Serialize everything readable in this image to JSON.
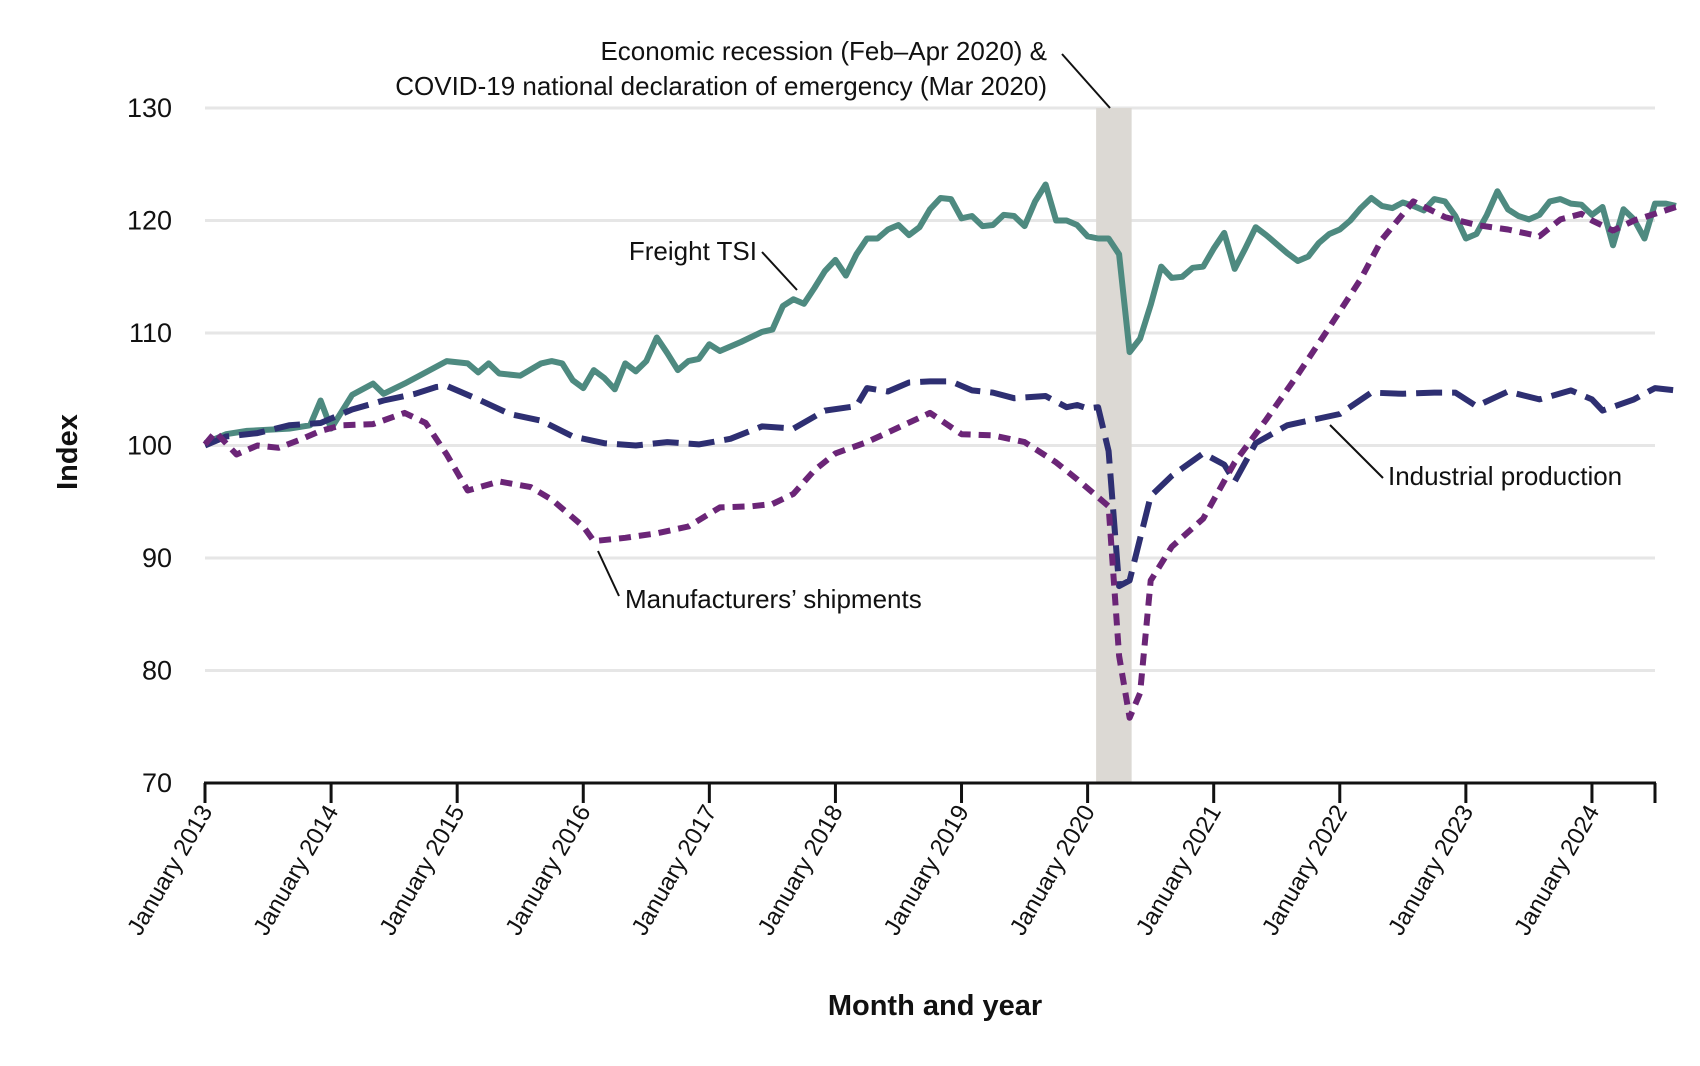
{
  "chart_data": {
    "type": "line",
    "xlabel": "Month and year",
    "ylabel": "Index",
    "xlim": [
      "2013-01",
      "2024-07"
    ],
    "ylim": [
      70,
      130
    ],
    "y_ticks": [
      "70",
      "80",
      "90",
      "100",
      "110",
      "120",
      "130"
    ],
    "x_ticks": [
      {
        "date": "2013-01",
        "label": "January 2013"
      },
      {
        "date": "2014-01",
        "label": "January 2014"
      },
      {
        "date": "2015-01",
        "label": "January 2015"
      },
      {
        "date": "2016-01",
        "label": "January 2016"
      },
      {
        "date": "2017-01",
        "label": "January 2017"
      },
      {
        "date": "2018-01",
        "label": "January 2018"
      },
      {
        "date": "2019-01",
        "label": "January 2019"
      },
      {
        "date": "2020-01",
        "label": "January 2020"
      },
      {
        "date": "2021-01",
        "label": "January 2021"
      },
      {
        "date": "2022-01",
        "label": "January 2022"
      },
      {
        "date": "2023-01",
        "label": "January 2023"
      },
      {
        "date": "2024-01",
        "label": "January 2024"
      }
    ],
    "grid": "horizontal",
    "colors": {
      "freight": "#4e8a80",
      "industrial": "#2e2f72",
      "shipments": "#6b2577",
      "shading": "#dcd9d4",
      "grid": "#e6e6e6",
      "axis": "#111111"
    },
    "recession_band": {
      "start": "2020-02",
      "end": "2020-04"
    },
    "annotations": {
      "recession_line1": "Economic recession (Feb–Apr 2020) &",
      "recession_line2": "COVID-19 national declaration of emergency (Mar 2020)"
    },
    "series": [
      {
        "name": "Freight TSI",
        "style": "solid",
        "points": [
          [
            "2013-01",
            100.2
          ],
          [
            "2013-03",
            101.0
          ],
          [
            "2013-05",
            101.3
          ],
          [
            "2013-07",
            101.4
          ],
          [
            "2013-09",
            101.5
          ],
          [
            "2013-11",
            101.8
          ],
          [
            "2013-12",
            104.0
          ],
          [
            "2014-01",
            101.5
          ],
          [
            "2014-03",
            104.5
          ],
          [
            "2014-05",
            105.5
          ],
          [
            "2014-06",
            104.6
          ],
          [
            "2014-08",
            105.5
          ],
          [
            "2014-10",
            106.5
          ],
          [
            "2014-12",
            107.5
          ],
          [
            "2015-02",
            107.3
          ],
          [
            "2015-03",
            106.5
          ],
          [
            "2015-04",
            107.3
          ],
          [
            "2015-05",
            106.4
          ],
          [
            "2015-07",
            106.2
          ],
          [
            "2015-09",
            107.3
          ],
          [
            "2015-10",
            107.5
          ],
          [
            "2015-11",
            107.3
          ],
          [
            "2015-12",
            105.8
          ],
          [
            "2016-01",
            105.1
          ],
          [
            "2016-02",
            106.7
          ],
          [
            "2016-03",
            106.0
          ],
          [
            "2016-04",
            105.0
          ],
          [
            "2016-05",
            107.3
          ],
          [
            "2016-06",
            106.6
          ],
          [
            "2016-07",
            107.5
          ],
          [
            "2016-08",
            109.6
          ],
          [
            "2016-09",
            108.2
          ],
          [
            "2016-10",
            106.7
          ],
          [
            "2016-11",
            107.5
          ],
          [
            "2016-12",
            107.7
          ],
          [
            "2017-01",
            109.0
          ],
          [
            "2017-02",
            108.4
          ],
          [
            "2017-04",
            109.2
          ],
          [
            "2017-06",
            110.1
          ],
          [
            "2017-07",
            110.3
          ],
          [
            "2017-08",
            112.4
          ],
          [
            "2017-09",
            113.0
          ],
          [
            "2017-10",
            112.6
          ],
          [
            "2017-11",
            114.0
          ],
          [
            "2017-12",
            115.5
          ],
          [
            "2018-01",
            116.5
          ],
          [
            "2018-02",
            115.1
          ],
          [
            "2018-03",
            117.0
          ],
          [
            "2018-04",
            118.4
          ],
          [
            "2018-05",
            118.4
          ],
          [
            "2018-06",
            119.2
          ],
          [
            "2018-07",
            119.6
          ],
          [
            "2018-08",
            118.7
          ],
          [
            "2018-09",
            119.4
          ],
          [
            "2018-10",
            121.0
          ],
          [
            "2018-11",
            122.0
          ],
          [
            "2018-12",
            121.9
          ],
          [
            "2019-01",
            120.2
          ],
          [
            "2019-02",
            120.4
          ],
          [
            "2019-03",
            119.5
          ],
          [
            "2019-04",
            119.6
          ],
          [
            "2019-05",
            120.5
          ],
          [
            "2019-06",
            120.4
          ],
          [
            "2019-07",
            119.5
          ],
          [
            "2019-08",
            121.7
          ],
          [
            "2019-09",
            123.2
          ],
          [
            "2019-10",
            120.0
          ],
          [
            "2019-11",
            120.0
          ],
          [
            "2019-12",
            119.6
          ],
          [
            "2020-01",
            118.6
          ],
          [
            "2020-02",
            118.4
          ],
          [
            "2020-03",
            118.4
          ],
          [
            "2020-04",
            117.0
          ],
          [
            "2020-05",
            108.3
          ],
          [
            "2020-06",
            109.5
          ],
          [
            "2020-07",
            112.5
          ],
          [
            "2020-08",
            115.9
          ],
          [
            "2020-09",
            114.9
          ],
          [
            "2020-10",
            115.0
          ],
          [
            "2020-11",
            115.8
          ],
          [
            "2020-12",
            115.9
          ],
          [
            "2021-01",
            117.5
          ],
          [
            "2021-02",
            118.9
          ],
          [
            "2021-03",
            115.7
          ],
          [
            "2021-04",
            117.5
          ],
          [
            "2021-05",
            119.4
          ],
          [
            "2021-06",
            118.7
          ],
          [
            "2021-07",
            117.9
          ],
          [
            "2021-08",
            117.1
          ],
          [
            "2021-09",
            116.4
          ],
          [
            "2021-10",
            116.8
          ],
          [
            "2021-11",
            118.0
          ],
          [
            "2021-12",
            118.8
          ],
          [
            "2022-01",
            119.2
          ],
          [
            "2022-02",
            120.0
          ],
          [
            "2022-03",
            121.1
          ],
          [
            "2022-04",
            122.0
          ],
          [
            "2022-05",
            121.3
          ],
          [
            "2022-06",
            121.1
          ],
          [
            "2022-07",
            121.6
          ],
          [
            "2022-08",
            121.3
          ],
          [
            "2022-09",
            120.9
          ],
          [
            "2022-10",
            121.9
          ],
          [
            "2022-11",
            121.7
          ],
          [
            "2022-12",
            120.4
          ],
          [
            "2023-01",
            118.4
          ],
          [
            "2023-02",
            118.8
          ],
          [
            "2023-03",
            120.5
          ],
          [
            "2023-04",
            122.6
          ],
          [
            "2023-05",
            121.0
          ],
          [
            "2023-06",
            120.4
          ],
          [
            "2023-07",
            120.1
          ],
          [
            "2023-08",
            120.5
          ],
          [
            "2023-09",
            121.7
          ],
          [
            "2023-10",
            121.9
          ],
          [
            "2023-11",
            121.5
          ],
          [
            "2023-12",
            121.4
          ],
          [
            "2024-01",
            120.5
          ],
          [
            "2024-02",
            121.2
          ],
          [
            "2024-03",
            117.8
          ],
          [
            "2024-04",
            121.0
          ],
          [
            "2024-05",
            120.1
          ],
          [
            "2024-06",
            118.4
          ],
          [
            "2024-07",
            121.5
          ],
          [
            "2024-08",
            121.5
          ],
          [
            "2024-09",
            121.3
          ]
        ]
      },
      {
        "name": "Industrial production",
        "style": "long-dash",
        "points": [
          [
            "2013-01",
            100.0
          ],
          [
            "2013-03",
            100.8
          ],
          [
            "2013-06",
            101.1
          ],
          [
            "2013-09",
            101.8
          ],
          [
            "2013-12",
            102.0
          ],
          [
            "2014-03",
            103.2
          ],
          [
            "2014-06",
            104.0
          ],
          [
            "2014-09",
            104.6
          ],
          [
            "2014-11",
            105.2
          ],
          [
            "2014-12",
            105.3
          ],
          [
            "2015-03",
            104.1
          ],
          [
            "2015-06",
            102.8
          ],
          [
            "2015-09",
            102.2
          ],
          [
            "2015-12",
            100.8
          ],
          [
            "2016-03",
            100.2
          ],
          [
            "2016-06",
            100.0
          ],
          [
            "2016-09",
            100.3
          ],
          [
            "2016-12",
            100.1
          ],
          [
            "2017-03",
            100.6
          ],
          [
            "2017-06",
            101.7
          ],
          [
            "2017-09",
            101.5
          ],
          [
            "2017-12",
            103.1
          ],
          [
            "2018-03",
            103.5
          ],
          [
            "2018-04",
            105.1
          ],
          [
            "2018-06",
            104.8
          ],
          [
            "2018-08",
            105.6
          ],
          [
            "2018-10",
            105.7
          ],
          [
            "2018-12",
            105.7
          ],
          [
            "2019-02",
            104.9
          ],
          [
            "2019-04",
            104.7
          ],
          [
            "2019-06",
            104.2
          ],
          [
            "2019-09",
            104.4
          ],
          [
            "2019-11",
            103.4
          ],
          [
            "2019-12",
            103.6
          ],
          [
            "2020-01",
            103.3
          ],
          [
            "2020-02",
            103.4
          ],
          [
            "2020-03",
            99.5
          ],
          [
            "2020-04",
            87.5
          ],
          [
            "2020-05",
            88.0
          ],
          [
            "2020-07",
            95.5
          ],
          [
            "2020-09",
            97.3
          ],
          [
            "2020-12",
            99.3
          ],
          [
            "2021-02",
            98.3
          ],
          [
            "2021-03",
            96.8
          ],
          [
            "2021-05",
            100.2
          ],
          [
            "2021-08",
            101.8
          ],
          [
            "2021-11",
            102.4
          ],
          [
            "2022-01",
            102.8
          ],
          [
            "2022-04",
            104.7
          ],
          [
            "2022-07",
            104.6
          ],
          [
            "2022-10",
            104.7
          ],
          [
            "2022-12",
            104.7
          ],
          [
            "2023-02",
            103.5
          ],
          [
            "2023-05",
            104.8
          ],
          [
            "2023-08",
            104.1
          ],
          [
            "2023-11",
            104.9
          ],
          [
            "2024-01",
            104.1
          ],
          [
            "2024-02",
            103.1
          ],
          [
            "2024-05",
            104.1
          ],
          [
            "2024-07",
            105.1
          ],
          [
            "2024-09",
            104.9
          ]
        ]
      },
      {
        "name": "Manufacturers’ shipments",
        "style": "short-dash",
        "points": [
          [
            "2013-01",
            100.1
          ],
          [
            "2013-02",
            101.2
          ],
          [
            "2013-04",
            99.2
          ],
          [
            "2013-06",
            100.0
          ],
          [
            "2013-08",
            99.8
          ],
          [
            "2013-10",
            100.5
          ],
          [
            "2013-12",
            101.3
          ],
          [
            "2014-02",
            101.8
          ],
          [
            "2014-05",
            101.9
          ],
          [
            "2014-08",
            102.9
          ],
          [
            "2014-10",
            102.0
          ],
          [
            "2014-12",
            99.2
          ],
          [
            "2015-02",
            96.0
          ],
          [
            "2015-05",
            96.8
          ],
          [
            "2015-08",
            96.3
          ],
          [
            "2015-10",
            95.2
          ],
          [
            "2016-01",
            92.8
          ],
          [
            "2016-02",
            91.5
          ],
          [
            "2016-05",
            91.8
          ],
          [
            "2016-08",
            92.2
          ],
          [
            "2016-11",
            92.8
          ],
          [
            "2017-02",
            94.5
          ],
          [
            "2017-05",
            94.6
          ],
          [
            "2017-07",
            94.8
          ],
          [
            "2017-09",
            95.7
          ],
          [
            "2017-11",
            97.8
          ],
          [
            "2018-01",
            99.3
          ],
          [
            "2018-04",
            100.3
          ],
          [
            "2018-07",
            101.6
          ],
          [
            "2018-10",
            102.9
          ],
          [
            "2019-01",
            101.0
          ],
          [
            "2019-04",
            100.9
          ],
          [
            "2019-07",
            100.3
          ],
          [
            "2019-10",
            98.5
          ],
          [
            "2019-12",
            97.0
          ],
          [
            "2020-02",
            95.4
          ],
          [
            "2020-03",
            94.6
          ],
          [
            "2020-04",
            81.3
          ],
          [
            "2020-05",
            75.8
          ],
          [
            "2020-06",
            78.0
          ],
          [
            "2020-07",
            88.0
          ],
          [
            "2020-09",
            91.0
          ],
          [
            "2020-12",
            93.5
          ],
          [
            "2021-03",
            98.5
          ],
          [
            "2021-06",
            102.3
          ],
          [
            "2021-09",
            106.3
          ],
          [
            "2021-12",
            110.5
          ],
          [
            "2022-03",
            114.8
          ],
          [
            "2022-05",
            118.3
          ],
          [
            "2022-08",
            121.7
          ],
          [
            "2022-11",
            120.3
          ],
          [
            "2023-02",
            119.6
          ],
          [
            "2023-05",
            119.2
          ],
          [
            "2023-08",
            118.6
          ],
          [
            "2023-10",
            120.1
          ],
          [
            "2023-12",
            120.6
          ],
          [
            "2024-01",
            120.0
          ],
          [
            "2024-03",
            119.1
          ],
          [
            "2024-05",
            120.0
          ],
          [
            "2024-07",
            120.6
          ],
          [
            "2024-09",
            121.2
          ]
        ]
      }
    ]
  }
}
